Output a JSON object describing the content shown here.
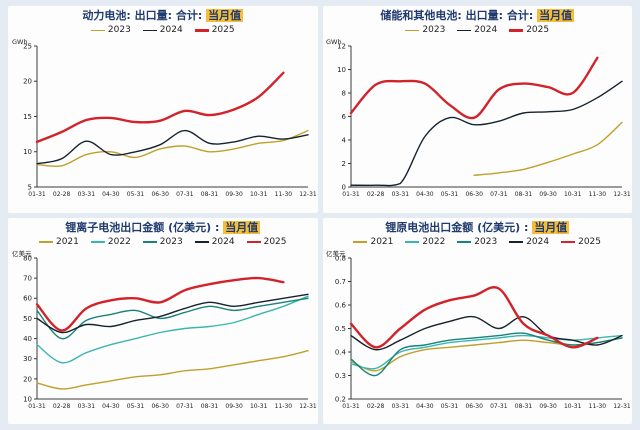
{
  "page": {
    "background": "#e4ebf2",
    "panel_background": "#fdfdfd",
    "title_color": "#1f3a6e",
    "highlight_color": "#f6bd3a"
  },
  "chart_data": [
    {
      "type": "line",
      "title_main": "动力电池: 出口量: 合计:",
      "title_highlight": "当月值",
      "ylabel": "GWh",
      "ylim": [
        5,
        25
      ],
      "yticks": [
        5,
        10,
        15,
        20,
        25
      ],
      "grid": false,
      "legend_position": "top",
      "categories": [
        "01-31",
        "02-28",
        "03-31",
        "04-30",
        "05-31",
        "06-30",
        "07-31",
        "08-31",
        "09-30",
        "10-31",
        "11-30",
        "12-31"
      ],
      "series": [
        {
          "name": "2023",
          "color": "#c0a02c",
          "width": 1.4,
          "values": [
            8.2,
            8.0,
            9.6,
            10.0,
            9.2,
            10.4,
            10.8,
            10.0,
            10.4,
            11.2,
            11.6,
            13.0
          ]
        },
        {
          "name": "2024",
          "color": "#16222e",
          "width": 1.4,
          "values": [
            8.3,
            9.0,
            11.5,
            9.6,
            10.0,
            11.0,
            13.0,
            11.2,
            11.4,
            12.2,
            11.8,
            12.4
          ]
        },
        {
          "name": "2025",
          "color": "#d2232a",
          "width": 2.4,
          "values": [
            11.4,
            12.8,
            14.5,
            14.8,
            14.2,
            14.4,
            15.8,
            15.2,
            16.0,
            17.8,
            21.2,
            null
          ]
        }
      ]
    },
    {
      "type": "line",
      "title_main": "储能和其他电池: 出口量: 合计:",
      "title_highlight": "当月值",
      "ylabel": "GWh",
      "ylim": [
        0,
        12
      ],
      "yticks": [
        0,
        2,
        4,
        6,
        8,
        10,
        12
      ],
      "grid": false,
      "legend_position": "top",
      "categories": [
        "01-31",
        "02-28",
        "03-31",
        "04-30",
        "05-31",
        "06-30",
        "07-31",
        "08-31",
        "09-30",
        "10-31",
        "11-30",
        "12-31"
      ],
      "series": [
        {
          "name": "2023",
          "color": "#c0a02c",
          "width": 1.4,
          "values": [
            null,
            null,
            null,
            null,
            null,
            1.0,
            1.2,
            1.5,
            2.1,
            2.8,
            3.6,
            5.5
          ]
        },
        {
          "name": "2024",
          "color": "#16222e",
          "width": 1.4,
          "values": [
            0.15,
            0.15,
            0.3,
            4.3,
            5.9,
            5.3,
            5.6,
            6.3,
            6.4,
            6.6,
            7.6,
            9.0
          ]
        },
        {
          "name": "2025",
          "color": "#d2232a",
          "width": 2.4,
          "values": [
            6.3,
            8.7,
            9.0,
            8.8,
            7.0,
            5.9,
            8.3,
            8.8,
            8.5,
            8.0,
            11.0,
            null
          ]
        }
      ]
    },
    {
      "type": "line",
      "title_main": "锂离子电池出口金额 (亿美元) :",
      "title_highlight": "当月值",
      "ylabel": "亿美元",
      "ylim": [
        10,
        80
      ],
      "yticks": [
        10,
        20,
        30,
        40,
        50,
        60,
        70,
        80
      ],
      "grid": false,
      "legend_position": "top",
      "categories": [
        "01-31",
        "02-28",
        "03-31",
        "04-30",
        "05-31",
        "06-30",
        "07-31",
        "08-31",
        "09-30",
        "10-31",
        "11-30",
        "12-31"
      ],
      "series": [
        {
          "name": "2021",
          "color": "#c0a02c",
          "width": 1.4,
          "values": [
            18,
            15,
            17,
            19,
            21,
            22,
            24,
            25,
            27,
            29,
            31,
            34
          ]
        },
        {
          "name": "2022",
          "color": "#3ab6b2",
          "width": 1.4,
          "values": [
            37,
            28,
            33,
            37,
            40,
            43,
            45,
            46,
            48,
            52,
            56,
            61
          ]
        },
        {
          "name": "2023",
          "color": "#17837b",
          "width": 1.4,
          "values": [
            54,
            40,
            49,
            52,
            54,
            50,
            53,
            56,
            54,
            56,
            58,
            60
          ]
        },
        {
          "name": "2024",
          "color": "#16222e",
          "width": 1.4,
          "values": [
            50,
            43,
            47,
            46,
            49,
            51,
            55,
            58,
            56,
            58,
            60,
            62
          ]
        },
        {
          "name": "2025",
          "color": "#d2232a",
          "width": 2.4,
          "values": [
            57,
            44,
            55,
            59,
            60,
            58,
            64,
            67,
            69,
            70,
            68,
            null
          ]
        }
      ]
    },
    {
      "type": "line",
      "title_main": "锂原电池出口金额 (亿美元) :",
      "title_highlight": "当月值",
      "ylabel": "亿美元",
      "ylim": [
        0.2,
        0.8
      ],
      "yticks": [
        0.2,
        0.3,
        0.4,
        0.5,
        0.6,
        0.7,
        0.8
      ],
      "grid": false,
      "legend_position": "top",
      "categories": [
        "01-31",
        "02-28",
        "03-31",
        "04-30",
        "05-31",
        "06-30",
        "07-31",
        "08-31",
        "09-30",
        "10-31",
        "11-30",
        "12-31"
      ],
      "series": [
        {
          "name": "2021",
          "color": "#c0a02c",
          "width": 1.4,
          "values": [
            0.36,
            0.32,
            0.38,
            0.41,
            0.42,
            0.43,
            0.44,
            0.45,
            0.44,
            0.43,
            0.44,
            0.46
          ]
        },
        {
          "name": "2022",
          "color": "#3ab6b2",
          "width": 1.4,
          "values": [
            0.35,
            0.33,
            0.4,
            0.42,
            0.44,
            0.45,
            0.46,
            0.47,
            0.46,
            0.45,
            0.46,
            0.47
          ]
        },
        {
          "name": "2023",
          "color": "#17837b",
          "width": 1.4,
          "values": [
            0.37,
            0.3,
            0.41,
            0.43,
            0.45,
            0.46,
            0.47,
            0.48,
            0.45,
            0.43,
            0.44,
            0.46
          ]
        },
        {
          "name": "2024",
          "color": "#16222e",
          "width": 1.4,
          "values": [
            0.47,
            0.41,
            0.45,
            0.5,
            0.53,
            0.55,
            0.5,
            0.55,
            0.47,
            0.45,
            0.43,
            0.47
          ]
        },
        {
          "name": "2025",
          "color": "#d2232a",
          "width": 2.4,
          "values": [
            0.52,
            0.42,
            0.5,
            0.58,
            0.62,
            0.64,
            0.67,
            0.52,
            0.47,
            0.42,
            0.46,
            null
          ]
        }
      ]
    }
  ]
}
